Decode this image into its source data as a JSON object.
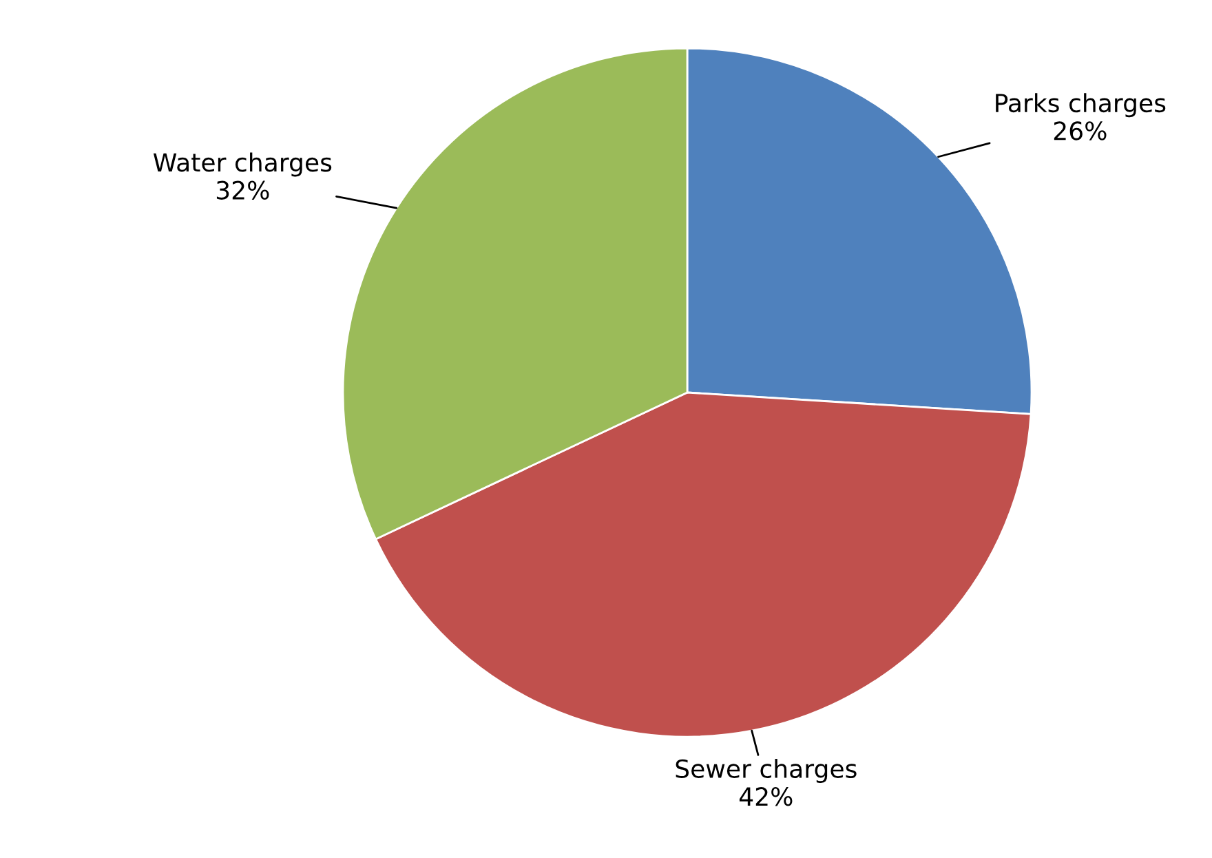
{
  "chart_data": {
    "type": "pie",
    "categories": [
      "Parks charges",
      "Sewer charges",
      "Water charges"
    ],
    "values": [
      26,
      42,
      32
    ],
    "colors": [
      "#4f81bd",
      "#c0504d",
      "#9bbb59"
    ],
    "value_labels": [
      "26%",
      "42%",
      "32%"
    ],
    "legend": false
  }
}
